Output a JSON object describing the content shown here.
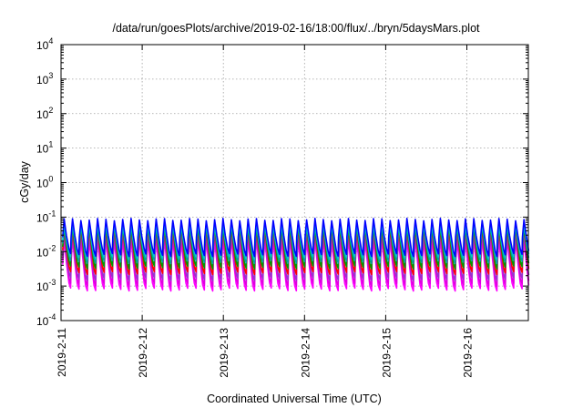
{
  "chart_data": {
    "type": "line",
    "title": "/data/run/goesPlots/archive/2019-02-16/18:00/flux/../bryn/5daysMars.plot",
    "xlabel": "Coordinated Universal Time (UTC)",
    "ylabel": "cGy/day",
    "yscale": "log",
    "ylim": [
      0.0001,
      10000
    ],
    "xlim_days": [
      0,
      5.77
    ],
    "grid": true,
    "y_ticks": [
      {
        "value": 0.0001,
        "base": "10",
        "exp": "-4"
      },
      {
        "value": 0.001,
        "base": "10",
        "exp": "-3"
      },
      {
        "value": 0.01,
        "base": "10",
        "exp": "-2"
      },
      {
        "value": 0.1,
        "base": "10",
        "exp": "-1"
      },
      {
        "value": 1,
        "base": "10",
        "exp": "0"
      },
      {
        "value": 10,
        "base": "10",
        "exp": "1"
      },
      {
        "value": 100,
        "base": "10",
        "exp": "2"
      },
      {
        "value": 1000,
        "base": "10",
        "exp": "3"
      },
      {
        "value": 10000,
        "base": "10",
        "exp": "4"
      }
    ],
    "x_ticks": [
      {
        "day": 0,
        "label": "2019-2-11"
      },
      {
        "day": 1,
        "label": "2019-2-12"
      },
      {
        "day": 2,
        "label": "2019-2-13"
      },
      {
        "day": 3,
        "label": "2019-2-14"
      },
      {
        "day": 4,
        "label": "2019-2-15"
      },
      {
        "day": 5,
        "label": "2019-2-16"
      }
    ],
    "pattern": {
      "period_days": 0.103,
      "phase_days": 0.02,
      "cycles": 56
    },
    "series": [
      {
        "color": "#ff00ff",
        "peak": 0.022,
        "trough": 0.0008
      },
      {
        "color": "#e000e0",
        "peak": 0.028,
        "trough": 0.0011
      },
      {
        "color": "#9933cc",
        "peak": 0.035,
        "trough": 0.0016
      },
      {
        "color": "#ff0000",
        "peak": 0.05,
        "trough": 0.0024
      },
      {
        "color": "#009900",
        "peak": 0.055,
        "trough": 0.0035
      },
      {
        "color": "#00a0a0",
        "peak": 0.06,
        "trough": 0.005
      },
      {
        "color": "#00c8c8",
        "peak": 0.065,
        "trough": 0.0065
      },
      {
        "color": "#0000ff",
        "peak": 0.085,
        "trough": 0.008
      }
    ]
  }
}
